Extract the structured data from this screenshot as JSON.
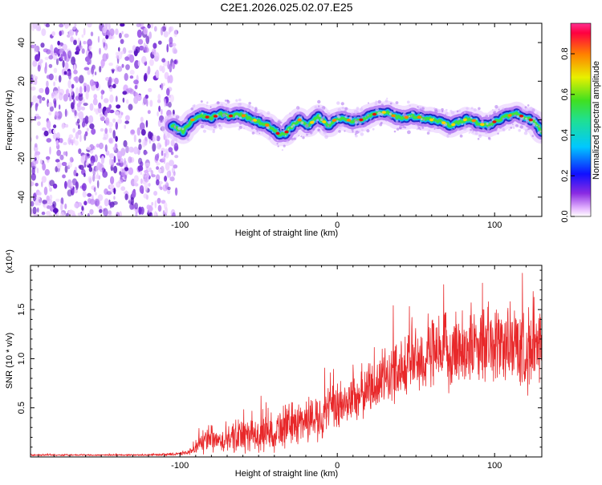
{
  "page": {
    "title": "C2E1.2026.025.02.07.E25"
  },
  "colors": {
    "snr_line": "#e8282a",
    "background": "#ffffff",
    "axis": "#000000",
    "spectrogram_noise": "#7a30d8",
    "spectrogram_ridge_core": "#e01010",
    "spectrogram_ridge_mid": "#40e040",
    "spectrogram_ridge_edge": "#1020c0"
  },
  "chart_data": [
    {
      "type": "heatmap",
      "title": "C2E1.2026.025.02.07.E25",
      "xlabel": "Height of straight line (km)",
      "ylabel": "Frequency (Hz)",
      "xlim": [
        -195,
        130
      ],
      "ylim": [
        -50,
        50
      ],
      "x_ticks": [
        -100,
        0,
        100
      ],
      "x_tick_labels": [
        "-100",
        "0",
        "100"
      ],
      "y_ticks": [
        -40,
        -20,
        0,
        20,
        40
      ],
      "y_tick_labels": [
        "-40",
        "-20",
        "0",
        "20",
        "40"
      ],
      "colorbar": {
        "label": "Normalized spectral amplitude",
        "range": [
          0,
          0.95
        ],
        "ticks": [
          0.0,
          0.2,
          0.4,
          0.6,
          0.8
        ],
        "tick_labels": [
          "0.0",
          "0.2",
          "0.4",
          "0.6",
          "0.8"
        ],
        "colormap": "rainbow"
      },
      "noise_region_x": [
        -195,
        -102
      ],
      "ridge": {
        "x": [
          -105,
          -98,
          -92,
          -86,
          -80,
          -74,
          -68,
          -62,
          -56,
          -50,
          -44,
          -38,
          -34,
          -30,
          -24,
          -18,
          -12,
          -6,
          0,
          6,
          12,
          18,
          24,
          30,
          36,
          42,
          48,
          54,
          60,
          66,
          72,
          78,
          84,
          90,
          96,
          102,
          108,
          114,
          120,
          126,
          130
        ],
        "frequency_hz": [
          -3,
          -6,
          0,
          2,
          1,
          3,
          2,
          3,
          1,
          -1,
          -3,
          -7,
          -8,
          -4,
          0,
          -3,
          2,
          -3,
          1,
          0,
          -1,
          1,
          3,
          4,
          2,
          1,
          2,
          1,
          0,
          -1,
          -3,
          -1,
          1,
          -2,
          -3,
          0,
          2,
          3,
          1,
          -1,
          -6
        ]
      }
    },
    {
      "type": "line",
      "xlabel": "Height of straight line (km)",
      "ylabel": "SNR (10 * v/v)",
      "multiplier_label": "(x10⁴)",
      "xlim": [
        -195,
        130
      ],
      "ylim": [
        0,
        1.95
      ],
      "x_ticks": [
        -100,
        0,
        100
      ],
      "x_tick_labels": [
        "-100",
        "0",
        "100"
      ],
      "y_ticks": [
        0.5,
        1.0,
        1.5
      ],
      "y_tick_labels": [
        "0.5",
        "1.0",
        "1.5"
      ],
      "series": [
        {
          "x": [
            -195,
            -180,
            -160,
            -140,
            -120,
            -100,
            -92,
            -88,
            -85,
            -80,
            -75,
            -70,
            -65,
            -60,
            -55,
            -50,
            -45,
            -40,
            -35,
            -30,
            -25,
            -20,
            -15,
            -10,
            -5,
            0,
            5,
            10,
            15,
            20,
            25,
            30,
            35,
            40,
            45,
            50,
            55,
            60,
            65,
            70,
            75,
            80,
            85,
            90,
            95,
            100,
            105,
            110,
            115,
            120,
            125,
            130
          ],
          "values": [
            0.02,
            0.02,
            0.02,
            0.02,
            0.02,
            0.03,
            0.06,
            0.12,
            0.16,
            0.18,
            0.15,
            0.16,
            0.2,
            0.22,
            0.2,
            0.22,
            0.24,
            0.26,
            0.3,
            0.33,
            0.35,
            0.38,
            0.4,
            0.42,
            0.46,
            0.5,
            0.55,
            0.6,
            0.64,
            0.7,
            0.75,
            0.8,
            0.86,
            0.92,
            0.96,
            0.99,
            1.0,
            1.02,
            1.05,
            1.07,
            1.1,
            1.12,
            1.13,
            1.12,
            1.13,
            1.15,
            1.15,
            1.14,
            1.12,
            1.1,
            1.08,
            1.05
          ],
          "noise_amplitude": [
            0.01,
            0.01,
            0.01,
            0.01,
            0.01,
            0.02,
            0.04,
            0.1,
            0.15,
            0.18,
            0.12,
            0.16,
            0.2,
            0.22,
            0.2,
            0.22,
            0.22,
            0.24,
            0.26,
            0.26,
            0.26,
            0.28,
            0.28,
            0.28,
            0.3,
            0.3,
            0.3,
            0.3,
            0.32,
            0.32,
            0.34,
            0.36,
            0.38,
            0.38,
            0.4,
            0.42,
            0.44,
            0.44,
            0.46,
            0.46,
            0.48,
            0.48,
            0.46,
            0.46,
            0.46,
            0.46,
            0.48,
            0.5,
            0.5,
            0.5,
            0.48,
            0.48
          ]
        }
      ]
    }
  ]
}
